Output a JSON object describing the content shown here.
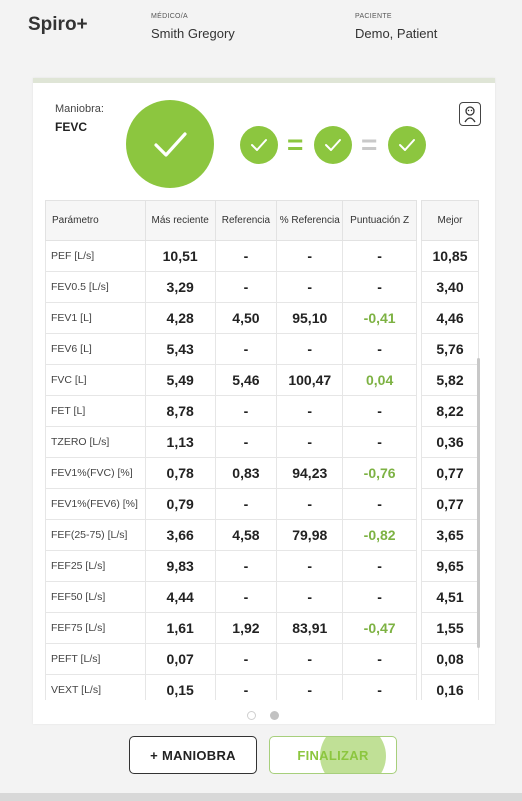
{
  "header": {
    "app_title": "Spiro+",
    "doctor_label": "MÉDICO/A",
    "doctor_name": "Smith Gregory",
    "patient_label": "PACIENTE",
    "patient_name": "Demo, Patient"
  },
  "maneuver": {
    "label": "Maniobra:",
    "value": "FEVC",
    "equals_sign": "="
  },
  "icons": {
    "quality": "check-icon",
    "corner": "baby-icon"
  },
  "colors": {
    "accent": "#8cc63f",
    "value_green": "#7db243"
  },
  "table": {
    "headers": [
      "Parámetro",
      "Más reciente",
      "Referencia",
      "% Referencia",
      "Puntuación Z"
    ],
    "best_header": "Mejor",
    "rows": [
      {
        "param": "PEF [L/s]",
        "recent": "10,51",
        "ref": "-",
        "pct": "-",
        "z": "-",
        "best": "10,85"
      },
      {
        "param": "FEV0.5 [L/s]",
        "recent": "3,29",
        "ref": "-",
        "pct": "-",
        "z": "-",
        "best": "3,40"
      },
      {
        "param": "FEV1 [L]",
        "recent": "4,28",
        "ref": "4,50",
        "pct": "95,10",
        "z": "-0,41",
        "best": "4,46"
      },
      {
        "param": "FEV6 [L]",
        "recent": "5,43",
        "ref": "-",
        "pct": "-",
        "z": "-",
        "best": "5,76"
      },
      {
        "param": "FVC [L]",
        "recent": "5,49",
        "ref": "5,46",
        "pct": "100,47",
        "z": "0,04",
        "best": "5,82"
      },
      {
        "param": "FET [L]",
        "recent": "8,78",
        "ref": "-",
        "pct": "-",
        "z": "-",
        "best": "8,22"
      },
      {
        "param": "TZERO [L/s]",
        "recent": "1,13",
        "ref": "-",
        "pct": "-",
        "z": "-",
        "best": "0,36"
      },
      {
        "param": "FEV1%(FVC) [%]",
        "recent": "0,78",
        "ref": "0,83",
        "pct": "94,23",
        "z": "-0,76",
        "best": "0,77"
      },
      {
        "param": "FEV1%(FEV6) [%]",
        "recent": "0,79",
        "ref": "-",
        "pct": "-",
        "z": "-",
        "best": "0,77"
      },
      {
        "param": "FEF(25-75) [L/s]",
        "recent": "3,66",
        "ref": "4,58",
        "pct": "79,98",
        "z": "-0,82",
        "best": "3,65"
      },
      {
        "param": "FEF25 [L/s]",
        "recent": "9,83",
        "ref": "-",
        "pct": "-",
        "z": "-",
        "best": "9,65"
      },
      {
        "param": "FEF50 [L/s]",
        "recent": "4,44",
        "ref": "-",
        "pct": "-",
        "z": "-",
        "best": "4,51"
      },
      {
        "param": "FEF75 [L/s]",
        "recent": "1,61",
        "ref": "1,92",
        "pct": "83,91",
        "z": "-0,47",
        "best": "1,55"
      },
      {
        "param": "PEFT [L/s]",
        "recent": "0,07",
        "ref": "-",
        "pct": "-",
        "z": "-",
        "best": "0,08"
      },
      {
        "param": "VEXT [L/s]",
        "recent": "0,15",
        "ref": "-",
        "pct": "-",
        "z": "-",
        "best": "0,16"
      }
    ]
  },
  "pager": {
    "pages": 2,
    "active": 2
  },
  "buttons": {
    "add_maneuver": "+ MANIOBRA",
    "finish": "FINALIZAR"
  }
}
